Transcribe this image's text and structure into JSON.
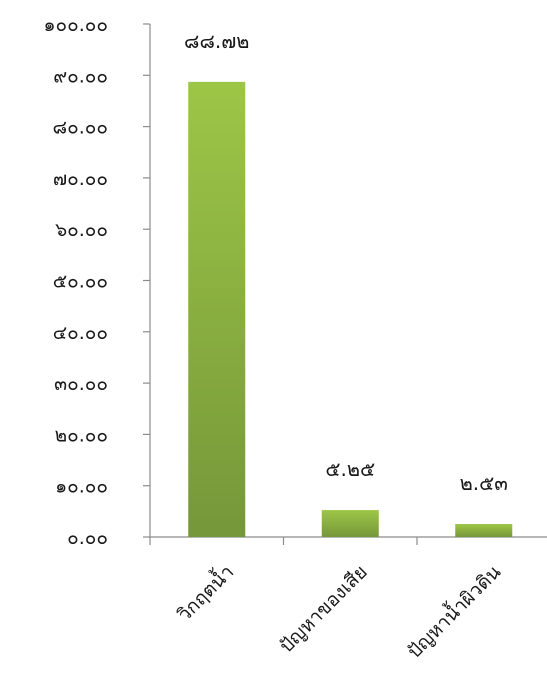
{
  "chart_data": {
    "type": "bar",
    "categories": [
      "วิกฤตน้ำ",
      "ปัญหาของเสีย",
      "ปัญหาน้ำผิวดิน"
    ],
    "values": [
      88.72,
      5.25,
      2.53
    ],
    "data_labels": [
      "๘๘.๗๒",
      "๕.๒๕",
      "๒.๕๓"
    ],
    "title": "",
    "xlabel": "",
    "ylabel": "",
    "ylim": [
      0,
      100
    ],
    "y_ticks": [
      {
        "value": 0,
        "label": "๐.๐๐"
      },
      {
        "value": 10,
        "label": "๑๐.๐๐"
      },
      {
        "value": 20,
        "label": "๒๐.๐๐"
      },
      {
        "value": 30,
        "label": "๓๐.๐๐"
      },
      {
        "value": 40,
        "label": "๔๐.๐๐"
      },
      {
        "value": 50,
        "label": "๕๐.๐๐"
      },
      {
        "value": 60,
        "label": "๖๐.๐๐"
      },
      {
        "value": 70,
        "label": "๗๐.๐๐"
      },
      {
        "value": 80,
        "label": "๘๐.๐๐"
      },
      {
        "value": 90,
        "label": "๙๐.๐๐"
      },
      {
        "value": 100,
        "label": "๑๐๐.๐๐"
      }
    ],
    "grid": false,
    "legend": "none",
    "bar_color_top": "#9dc646",
    "bar_color_bottom": "#76973a",
    "axis_color": "#8c8c8c"
  }
}
